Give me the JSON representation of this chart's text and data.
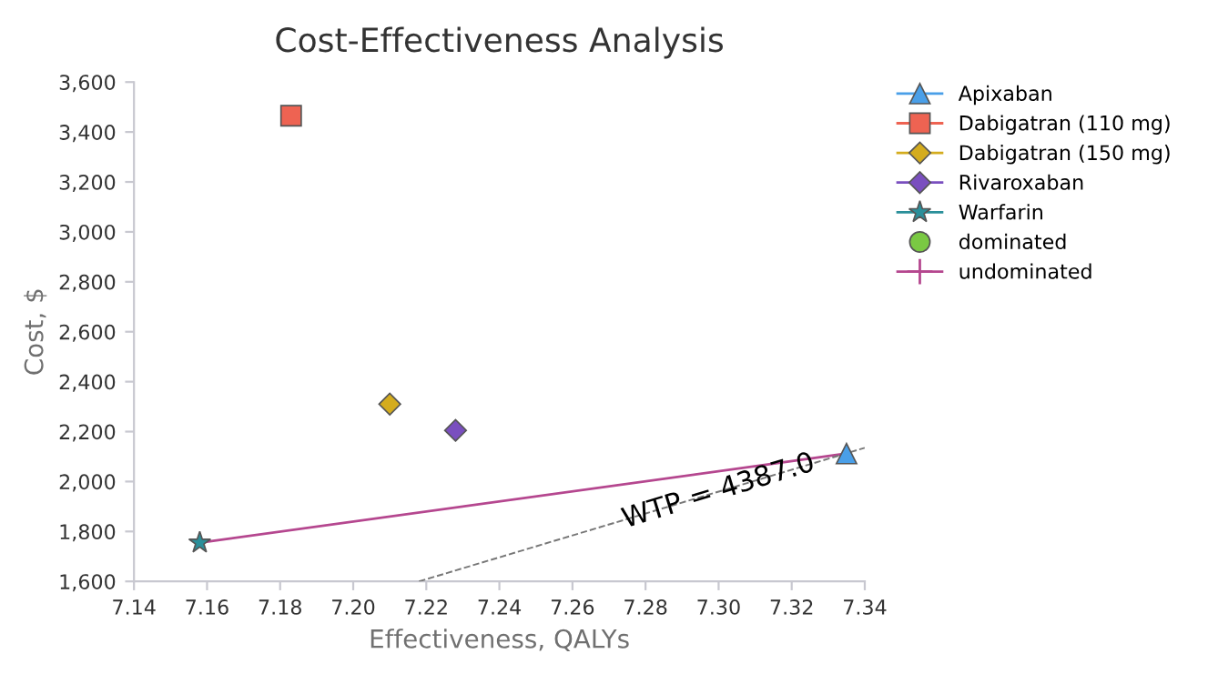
{
  "chart_data": {
    "type": "scatter",
    "title": "Cost-Effectiveness Analysis",
    "xlabel": "Effectiveness, QALYs",
    "ylabel": "Cost, $",
    "xlim": [
      7.14,
      7.34
    ],
    "xticks": [
      {
        "value": 7.14,
        "label": "7.14"
      },
      {
        "value": 7.16,
        "label": "7.16"
      },
      {
        "value": 7.18,
        "label": "7.18"
      },
      {
        "value": 7.2,
        "label": "7.20"
      },
      {
        "value": 7.22,
        "label": "7.22"
      },
      {
        "value": 7.24,
        "label": "7.24"
      },
      {
        "value": 7.26,
        "label": "7.26"
      },
      {
        "value": 7.28,
        "label": "7.28"
      },
      {
        "value": 7.3,
        "label": "7.30"
      },
      {
        "value": 7.32,
        "label": "7.32"
      },
      {
        "value": 7.34,
        "label": "7.34"
      }
    ],
    "ylim": [
      1600,
      3600
    ],
    "yticks": [
      {
        "value": 1600,
        "label": "1,600"
      },
      {
        "value": 1800,
        "label": "1,800"
      },
      {
        "value": 2000,
        "label": "2,000"
      },
      {
        "value": 2200,
        "label": "2,200"
      },
      {
        "value": 2400,
        "label": "2,400"
      },
      {
        "value": 2600,
        "label": "2,600"
      },
      {
        "value": 2800,
        "label": "2,800"
      },
      {
        "value": 3000,
        "label": "3,000"
      },
      {
        "value": 3200,
        "label": "3,200"
      },
      {
        "value": 3400,
        "label": "3,400"
      },
      {
        "value": 3600,
        "label": "3,600"
      }
    ],
    "grid": false,
    "legend": "right",
    "series": [
      {
        "name": "Apixaban",
        "color": "#4a9fe8",
        "marker": "triangle",
        "x": [
          7.335
        ],
        "values": [
          2112
        ]
      },
      {
        "name": "Dabigatran (110 mg)",
        "color": "#ee6352",
        "marker": "square",
        "x": [
          7.183
        ],
        "values": [
          3465
        ]
      },
      {
        "name": "Dabigatran (150 mg)",
        "color": "#d4ac1e",
        "marker": "diamond",
        "x": [
          7.21
        ],
        "values": [
          2310
        ]
      },
      {
        "name": "Rivaroxaban",
        "color": "#7a4fbf",
        "marker": "diamond",
        "x": [
          7.228
        ],
        "values": [
          2205
        ]
      },
      {
        "name": "Warfarin",
        "color": "#2a8f9a",
        "marker": "star",
        "x": [
          7.158
        ],
        "values": [
          1755
        ]
      },
      {
        "name": "dominated",
        "color": "#7ac943",
        "marker": "circle"
      },
      {
        "name": "undominated",
        "type": "line",
        "color": "#b5478f",
        "marker": "none",
        "line_style": "solid",
        "x": [
          7.158,
          7.335
        ],
        "values": [
          1755,
          2112
        ]
      },
      {
        "type": "line",
        "color": "#777777",
        "marker": "none",
        "line_style": "dashed",
        "x": [
          7.218,
          7.34
        ],
        "values": [
          1600,
          2135
        ]
      }
    ],
    "annotations": [
      {
        "text": "WTP = 4387.0",
        "x": 7.3,
        "y": 1960
      }
    ]
  }
}
